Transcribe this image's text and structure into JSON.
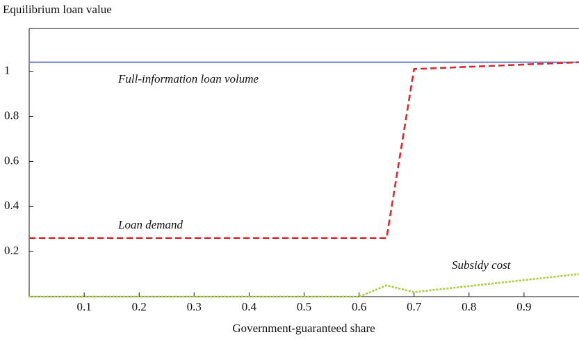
{
  "chart_data": {
    "type": "line",
    "y_label": "Equilibrium loan value",
    "x_label": "Government-guaranteed share",
    "x": [
      0,
      0.6,
      0.65,
      0.7,
      1
    ],
    "series": [
      {
        "name": "Full-information loan volume",
        "color": "#6b7ec2",
        "style": "solid",
        "values": [
          1.04,
          1.04,
          1.04,
          1.04,
          1.04
        ]
      },
      {
        "name": "Loan demand",
        "color": "#e3262a",
        "style": "dashed",
        "values": [
          0.26,
          0.26,
          0.26,
          1.01,
          1.04
        ]
      },
      {
        "name": "Subsidy cost",
        "color": "#a6cf38",
        "style": "dotted",
        "values": [
          0,
          0,
          0.05,
          0.02,
          0.1
        ]
      }
    ],
    "xlim": [
      0,
      1
    ],
    "ylim": [
      0,
      1.19
    ],
    "xticks": [
      0.1,
      0.2,
      0.3,
      0.4,
      0.5,
      0.6,
      0.7,
      0.8,
      0.9
    ],
    "yticks": [
      0.2,
      0.4,
      0.6,
      0.8,
      1
    ],
    "grid": false
  }
}
